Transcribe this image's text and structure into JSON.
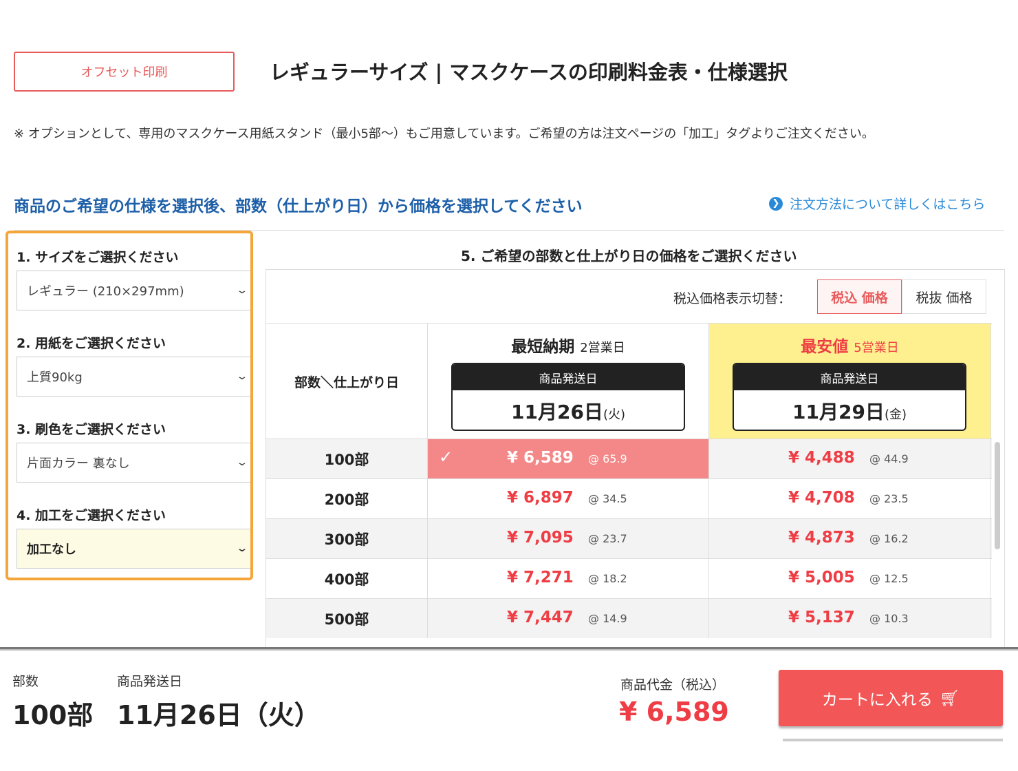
{
  "header": {
    "tag": "オフセット印刷",
    "title": "レギュラーサイズ | マスクケースの印刷料金表・仕様選択"
  },
  "note": "※ オプションとして、専用のマスクケース用紙スタンド（最小5部〜）もご用意しています。ご希望の方は注文ページの「加工」タグよりご注文ください。",
  "guide": "商品のご希望の仕様を選択後、部数（仕上がり日）から価格を選択してください",
  "howto_link": "注文方法について詳しくはこちら",
  "options": [
    {
      "label": "1. サイズをご選択ください",
      "value": "レギュラー (210×297mm)"
    },
    {
      "label": "2. 用紙をご選択ください",
      "value": "上質90kg"
    },
    {
      "label": "3. 刷色をご選択ください",
      "value": "片面カラー 裏なし"
    },
    {
      "label": "4. 加工をご選択ください",
      "value": "加工なし"
    }
  ],
  "price_table": {
    "title": "5. ご希望の部数と仕上がり日の価格をご選択ください",
    "toggle_label": "税込価格表示切替：",
    "toggle_incl": "税込 価格",
    "toggle_excl": "税抜 価格",
    "corner": "部数＼仕上がり日",
    "columns": [
      {
        "name": "最短納期",
        "days": "2営業日",
        "ship_label": "商品発送日",
        "date": "11月26日",
        "dow": "(火)"
      },
      {
        "name": "最安値",
        "days": "5営業日",
        "ship_label": "商品発送日",
        "date": "11月29日",
        "dow": "(金)"
      }
    ],
    "rows": [
      {
        "qty": "100部",
        "prices": [
          {
            "price": "¥ 6,589",
            "unit": "@ 65.9",
            "selected": true
          },
          {
            "price": "¥ 4,488",
            "unit": "@ 44.9"
          }
        ]
      },
      {
        "qty": "200部",
        "prices": [
          {
            "price": "¥ 6,897",
            "unit": "@ 34.5"
          },
          {
            "price": "¥ 4,708",
            "unit": "@ 23.5"
          }
        ]
      },
      {
        "qty": "300部",
        "prices": [
          {
            "price": "¥ 7,095",
            "unit": "@ 23.7"
          },
          {
            "price": "¥ 4,873",
            "unit": "@ 16.2"
          }
        ]
      },
      {
        "qty": "400部",
        "prices": [
          {
            "price": "¥ 7,271",
            "unit": "@ 18.2"
          },
          {
            "price": "¥ 5,005",
            "unit": "@ 12.5"
          }
        ]
      },
      {
        "qty": "500部",
        "prices": [
          {
            "price": "¥ 7,447",
            "unit": "@ 14.9"
          },
          {
            "price": "¥ 5,137",
            "unit": "@ 10.3"
          }
        ]
      }
    ]
  },
  "footer": {
    "qty_label": "部数",
    "qty": "100部",
    "ship_label": "商品発送日",
    "ship": "11月26日（火）",
    "total_label": "商品代金（税込）",
    "total": "¥ 6,589",
    "cart": "カートに入れる"
  },
  "colors": {
    "accent": "#f25656",
    "highlight": "#fff08f",
    "selected": "#f48787",
    "link": "#1d5fa8",
    "options_border": "#f5a53a"
  }
}
